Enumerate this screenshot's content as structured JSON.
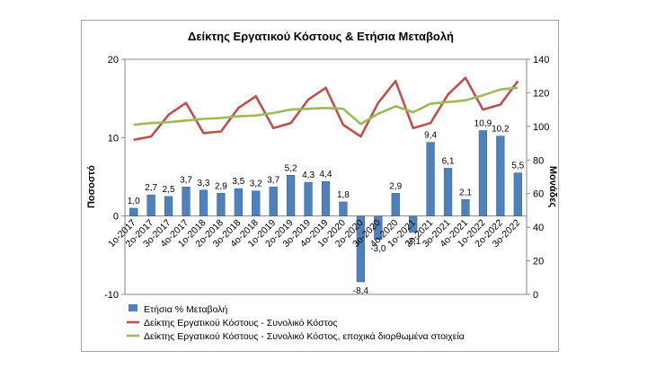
{
  "chart_data": {
    "type": "bar+line",
    "title": "Δείκτης Εργατικού Κόστους & Ετήσια Μεταβολή",
    "ylabel_left": "Ποσοστό",
    "ylabel_right": "Μονάδες",
    "ylim_left": [
      -10,
      20
    ],
    "yticks_left": [
      "-10",
      "0",
      "10",
      "20"
    ],
    "ylim_right": [
      0,
      140
    ],
    "yticks_right": [
      "0",
      "20",
      "40",
      "60",
      "80",
      "100",
      "120",
      "140"
    ],
    "grid": false,
    "legend_position": "bottom",
    "categories": [
      "1ο-2017",
      "2ο-2017",
      "3ο-2017",
      "4ο-2017",
      "1ο-2018",
      "2ο-2018",
      "3ο-2018",
      "4ο-2018",
      "1ο-2019",
      "2ο-2019",
      "3ο-2019",
      "4ο-2019",
      "1ο-2020",
      "2ο-2020",
      "3ο-2020",
      "4ο-2020",
      "1ο-2021",
      "2ο-2021",
      "3ο-2021",
      "4ο-2021",
      "1ο-2022",
      "2ο-2022",
      "3ο-2022"
    ],
    "bar_series": {
      "name": "Ετήσια % Μεταβολή",
      "color": "#4f81bd",
      "values": [
        1.0,
        2.7,
        2.5,
        3.7,
        3.3,
        2.9,
        3.5,
        3.2,
        3.7,
        5.2,
        4.3,
        4.4,
        1.8,
        -8.4,
        -3.0,
        2.9,
        -2.1,
        9.4,
        6.1,
        2.1,
        10.9,
        10.2,
        5.5
      ],
      "labels": [
        "1,0",
        "2,7",
        "2,5",
        "3,7",
        "3,3",
        "2,9",
        "3,5",
        "3,2",
        "3,7",
        "5,2",
        "4,3",
        "4,4",
        "1,8",
        "-8,4",
        "-3,0",
        "2,9",
        "-2,1",
        "9,4",
        "6,1",
        "2,1",
        "10,9",
        "10,2",
        "5,5"
      ]
    },
    "line_series": [
      {
        "name": "Δείκτης Εργατικού Κόστους - Συνολικό Κόστος",
        "color": "#c0504d",
        "values": [
          92,
          94,
          107,
          114,
          96,
          97,
          111,
          118,
          99,
          102,
          116,
          123,
          101,
          94,
          114,
          127,
          99,
          102,
          119,
          129,
          110,
          113,
          127
        ]
      },
      {
        "name": "Δείκτης Εργατικού Κόστους - Συνολικό Κόστος, εποχικά διορθωμένα στοιχεία",
        "color": "#9bbb59",
        "values": [
          101,
          102,
          102.5,
          103.5,
          104.5,
          105,
          106,
          106.5,
          108,
          110,
          110.5,
          111,
          110.5,
          101.5,
          107.5,
          112,
          108.5,
          113.5,
          114.5,
          115.5,
          118.5,
          122,
          123
        ]
      }
    ]
  }
}
